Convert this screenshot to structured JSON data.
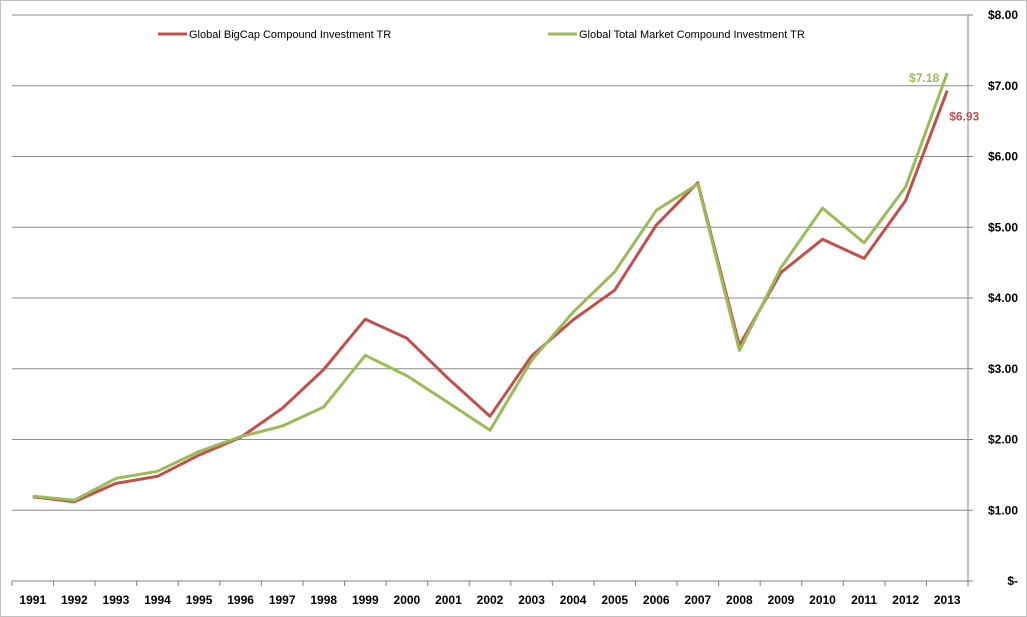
{
  "chart_data": {
    "type": "line",
    "title": "",
    "xlabel": "",
    "ylabel": "",
    "ylim": [
      0,
      8
    ],
    "x": [
      "1991",
      "1992",
      "1993",
      "1994",
      "1995",
      "1996",
      "1997",
      "1998",
      "1999",
      "2000",
      "2001",
      "2002",
      "2003",
      "2004",
      "2005",
      "2006",
      "2007",
      "2008",
      "2009",
      "2010",
      "2011",
      "2012",
      "2013"
    ],
    "y_ticks": [
      {
        "value": 0,
        "label": "$-"
      },
      {
        "value": 1,
        "label": "$1.00"
      },
      {
        "value": 2,
        "label": "$2.00"
      },
      {
        "value": 3,
        "label": "$3.00"
      },
      {
        "value": 4,
        "label": "$4.00"
      },
      {
        "value": 5,
        "label": "$5.00"
      },
      {
        "value": 6,
        "label": "$6.00"
      },
      {
        "value": 7,
        "label": "$7.00"
      },
      {
        "value": 8,
        "label": "$8.00"
      }
    ],
    "grid": true,
    "legend_position": "top",
    "series": [
      {
        "name": "Global BigCap Compound Investment TR",
        "color": "#c0504d",
        "values": [
          1.19,
          1.12,
          1.38,
          1.48,
          1.78,
          2.03,
          2.44,
          2.99,
          3.7,
          3.43,
          2.86,
          2.33,
          3.18,
          3.69,
          4.11,
          5.03,
          5.63,
          3.33,
          4.36,
          4.83,
          4.56,
          5.38,
          6.93
        ],
        "end_label": "$6.93"
      },
      {
        "name": "Global Total Market Compound Investment TR",
        "color": "#9bbb59",
        "values": [
          1.2,
          1.14,
          1.45,
          1.55,
          1.83,
          2.04,
          2.19,
          2.46,
          3.19,
          2.9,
          2.52,
          2.13,
          3.12,
          3.8,
          4.37,
          5.24,
          5.61,
          3.26,
          4.43,
          5.27,
          4.78,
          5.57,
          7.18
        ],
        "end_label": "$7.18"
      }
    ]
  }
}
